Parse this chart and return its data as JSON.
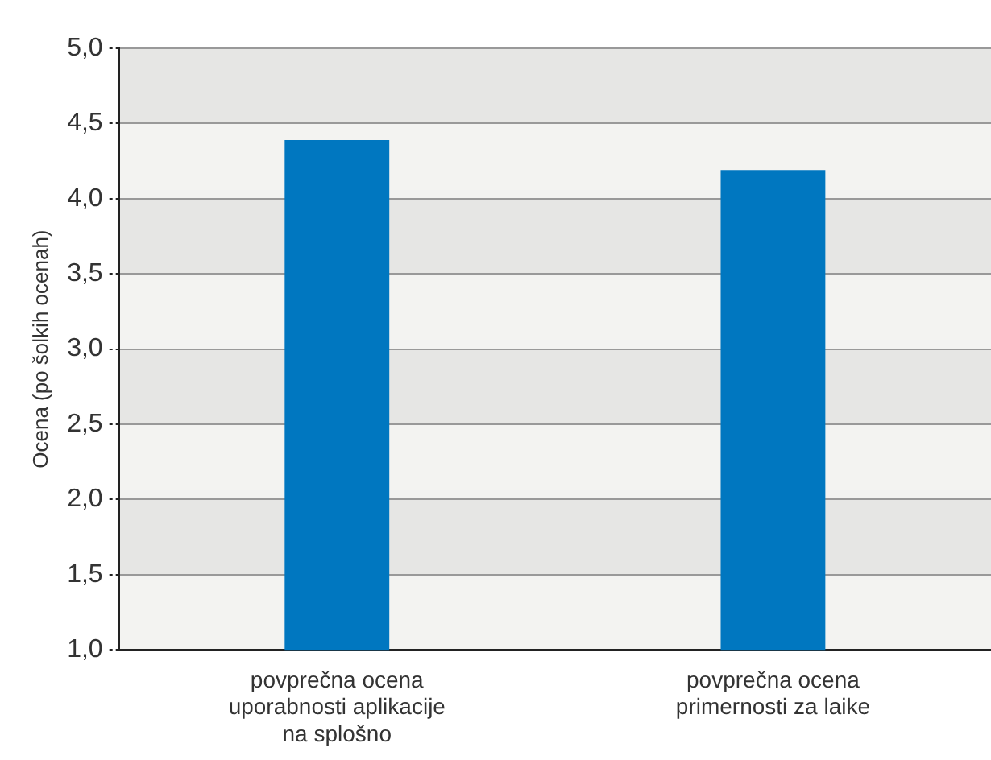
{
  "chart_data": {
    "type": "bar",
    "ylabel": "Ocena (po šolkih ocenah)",
    "categories": [
      "povprečna ocena uporabnosti aplikacije na splošno",
      "povprečna ocena primernosti za laike"
    ],
    "values": [
      4.39,
      4.19
    ],
    "color": "#0077c0",
    "ylim": [
      1,
      5
    ],
    "yticks": [
      {
        "value": 1,
        "label": "1,0"
      },
      {
        "value": 1.5,
        "label": "1,5"
      },
      {
        "value": 2,
        "label": "2,0"
      },
      {
        "value": 2.5,
        "label": "2,5"
      },
      {
        "value": 3,
        "label": "3,0"
      },
      {
        "value": 3.5,
        "label": "3,5"
      },
      {
        "value": 4,
        "label": "4,0"
      },
      {
        "value": 4.5,
        "label": "4,5"
      },
      {
        "value": 5,
        "label": "5,0"
      }
    ],
    "grid": "y",
    "legend": false
  }
}
